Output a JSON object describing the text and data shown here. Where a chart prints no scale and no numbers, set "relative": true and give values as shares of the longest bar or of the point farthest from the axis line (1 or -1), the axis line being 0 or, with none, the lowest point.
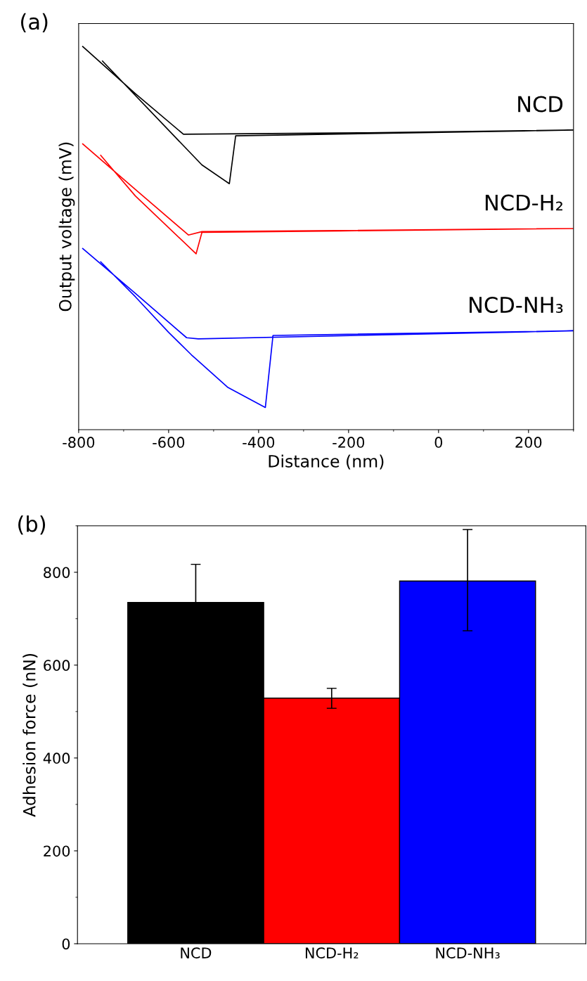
{
  "chart_data": [
    {
      "type": "line",
      "title": "(a)",
      "xlabel": "Distance (nm)",
      "ylabel": "Output voltage (mV)",
      "relative": true,
      "xlim": [
        -800,
        300
      ],
      "xticks": [
        -800,
        -600,
        -400,
        -200,
        0,
        200
      ],
      "tick_labels": "x",
      "grid": false,
      "legend": false,
      "series": [
        {
          "name": "NCD",
          "color": "#000000",
          "x": [
            -791,
            -674,
            -567,
            -159,
            300,
            -451,
            -465,
            -526,
            -747
          ],
          "values": [
            1.0,
            0.877,
            0.771,
            0.775,
            0.782,
            0.767,
            0.642,
            0.691,
            0.962
          ]
        },
        {
          "name": "NCD-H₂",
          "color": "#ff0000",
          "x": [
            -791,
            -674,
            -556,
            -526,
            300,
            -526,
            -539,
            -674,
            -751
          ],
          "values": [
            0.746,
            0.627,
            0.508,
            0.517,
            0.525,
            0.515,
            0.459,
            0.61,
            0.716
          ]
        },
        {
          "name": "NCD-NH₃",
          "color": "#0000ff",
          "x": [
            -791,
            -674,
            -560,
            -534,
            300,
            -368,
            -385,
            -468,
            -549,
            -600,
            -674,
            -751
          ],
          "values": [
            0.473,
            0.356,
            0.24,
            0.237,
            0.258,
            0.246,
            0.058,
            0.11,
            0.195,
            0.254,
            0.347,
            0.438
          ]
        }
      ]
    },
    {
      "type": "bar",
      "title": "(b)",
      "ylabel": "Adhesion force (nN)",
      "categories": [
        "NCD",
        "NCD-H₂",
        "NCD-NH₃"
      ],
      "values": [
        735,
        529,
        781
      ],
      "colors": [
        "#000000",
        "#ff0000",
        "#0000ff"
      ],
      "errors": [
        [
          735,
          817
        ],
        [
          507,
          550
        ],
        [
          674,
          892
        ]
      ],
      "ylim": [
        0,
        900
      ],
      "yticks": [
        0,
        200,
        400,
        600,
        800
      ],
      "grid": false,
      "legend": false
    }
  ]
}
